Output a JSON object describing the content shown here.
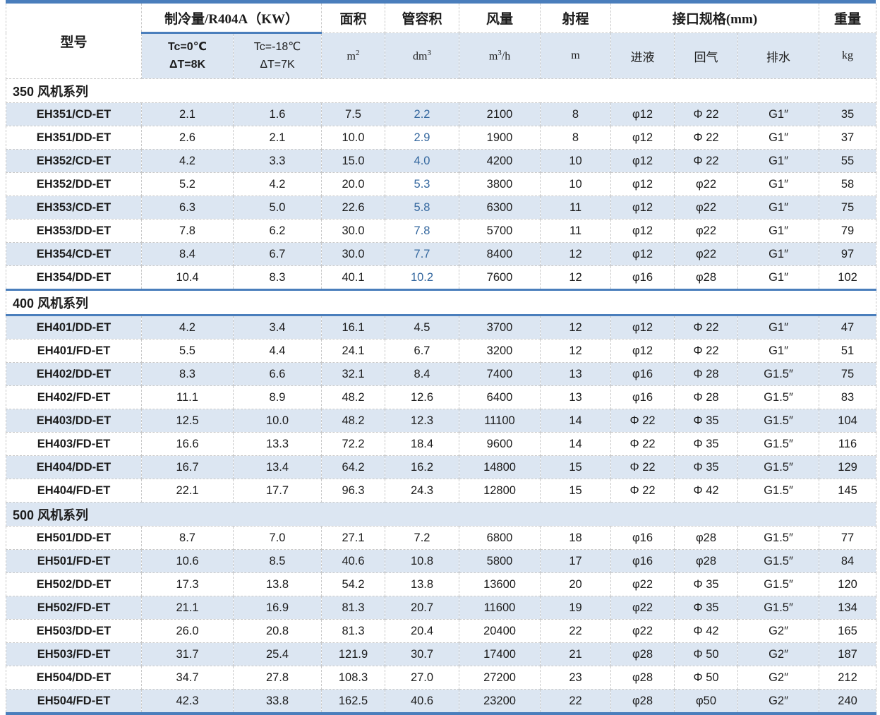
{
  "colors": {
    "accent_line": "#4a7ebc",
    "row_shade": "#dce6f2",
    "volume_text_blue": "#35689f",
    "grid_dash": "#c9c9c9"
  },
  "header": {
    "model_label": "型号",
    "cooling_group_label": "制冷量/R404A（KW）",
    "cooling_cols": [
      {
        "line1": "Tc=0℃",
        "line2": "ΔT=8K"
      },
      {
        "line1": "Tc=-18℃",
        "line2": "ΔT=7K"
      }
    ],
    "area_label": "面积",
    "vol_label": "管容积",
    "flow_label": "风量",
    "throw_label": "射程",
    "conn_group_label": "接口规格(mm)",
    "weight_label": "重量",
    "units": {
      "area": {
        "pre": "m",
        "sup": "2",
        "post": ""
      },
      "vol": {
        "pre": "dm",
        "sup": "3",
        "post": ""
      },
      "flow": {
        "pre": "m",
        "sup": "3",
        "post": "/h"
      },
      "throw": "m",
      "liquid": "进液",
      "gas": "回气",
      "drain": "排水",
      "weight": "kg"
    }
  },
  "sections": [
    {
      "series": "350",
      "title": "350 风机系列",
      "header_shaded": false,
      "divider_top": false,
      "divider_bottom": false,
      "vol_text_blue": true,
      "rows": [
        {
          "model": "EH351/CD-ET",
          "tc0": "2.1",
          "tc18": "1.6",
          "area": "7.5",
          "vol": "2.2",
          "flow": "2100",
          "throw": "8",
          "liquid": "φ12",
          "gas": "Φ 22",
          "drain": "G1″",
          "weight": "35",
          "shaded": true
        },
        {
          "model": "EH351/DD-ET",
          "tc0": "2.6",
          "tc18": "2.1",
          "area": "10.0",
          "vol": "2.9",
          "flow": "1900",
          "throw": "8",
          "liquid": "φ12",
          "gas": "Φ 22",
          "drain": "G1″",
          "weight": "37",
          "shaded": false
        },
        {
          "model": "EH352/CD-ET",
          "tc0": "4.2",
          "tc18": "3.3",
          "area": "15.0",
          "vol": "4.0",
          "flow": "4200",
          "throw": "10",
          "liquid": "φ12",
          "gas": "Φ 22",
          "drain": "G1″",
          "weight": "55",
          "shaded": true
        },
        {
          "model": "EH352/DD-ET",
          "tc0": "5.2",
          "tc18": "4.2",
          "area": "20.0",
          "vol": "5.3",
          "flow": "3800",
          "throw": "10",
          "liquid": "φ12",
          "gas": "φ22",
          "drain": "G1″",
          "weight": "58",
          "shaded": false
        },
        {
          "model": "EH353/CD-ET",
          "tc0": "6.3",
          "tc18": "5.0",
          "area": "22.6",
          "vol": "5.8",
          "flow": "6300",
          "throw": "11",
          "liquid": "φ12",
          "gas": "φ22",
          "drain": "G1″",
          "weight": "75",
          "shaded": true
        },
        {
          "model": "EH353/DD-ET",
          "tc0": "7.8",
          "tc18": "6.2",
          "area": "30.0",
          "vol": "7.8",
          "flow": "5700",
          "throw": "11",
          "liquid": "φ12",
          "gas": "φ22",
          "drain": "G1″",
          "weight": "79",
          "shaded": false
        },
        {
          "model": "EH354/CD-ET",
          "tc0": "8.4",
          "tc18": "6.7",
          "area": "30.0",
          "vol": "7.7",
          "flow": "8400",
          "throw": "12",
          "liquid": "φ12",
          "gas": "φ22",
          "drain": "G1″",
          "weight": "97",
          "shaded": true
        },
        {
          "model": "EH354/DD-ET",
          "tc0": "10.4",
          "tc18": "8.3",
          "area": "40.1",
          "vol": "10.2",
          "flow": "7600",
          "throw": "12",
          "liquid": "φ16",
          "gas": "φ28",
          "drain": "G1″",
          "weight": "102",
          "shaded": false
        }
      ]
    },
    {
      "series": "400",
      "title": "400 风机系列",
      "header_shaded": false,
      "divider_top": true,
      "divider_bottom": true,
      "vol_text_blue": false,
      "rows": [
        {
          "model": "EH401/DD-ET",
          "tc0": "4.2",
          "tc18": "3.4",
          "area": "16.1",
          "vol": "4.5",
          "flow": "3700",
          "throw": "12",
          "liquid": "φ12",
          "gas": "Φ 22",
          "drain": "G1″",
          "weight": "47",
          "shaded": true
        },
        {
          "model": "EH401/FD-ET",
          "tc0": "5.5",
          "tc18": "4.4",
          "area": "24.1",
          "vol": "6.7",
          "flow": "3200",
          "throw": "12",
          "liquid": "φ12",
          "gas": "Φ 22",
          "drain": "G1″",
          "weight": "51",
          "shaded": false
        },
        {
          "model": "EH402/DD-ET",
          "tc0": "8.3",
          "tc18": "6.6",
          "area": "32.1",
          "vol": "8.4",
          "flow": "7400",
          "throw": "13",
          "liquid": "φ16",
          "gas": "Φ 28",
          "drain": "G1.5″",
          "weight": "75",
          "shaded": true
        },
        {
          "model": "EH402/FD-ET",
          "tc0": "11.1",
          "tc18": "8.9",
          "area": "48.2",
          "vol": "12.6",
          "flow": "6400",
          "throw": "13",
          "liquid": "φ16",
          "gas": "Φ 28",
          "drain": "G1.5″",
          "weight": "83",
          "shaded": false
        },
        {
          "model": "EH403/DD-ET",
          "tc0": "12.5",
          "tc18": "10.0",
          "area": "48.2",
          "vol": "12.3",
          "flow": "11100",
          "throw": "14",
          "liquid": "Φ 22",
          "gas": "Φ 35",
          "drain": "G1.5″",
          "weight": "104",
          "shaded": true
        },
        {
          "model": "EH403/FD-ET",
          "tc0": "16.6",
          "tc18": "13.3",
          "area": "72.2",
          "vol": "18.4",
          "flow": "9600",
          "throw": "14",
          "liquid": "Φ 22",
          "gas": "Φ 35",
          "drain": "G1.5″",
          "weight": "116",
          "shaded": false
        },
        {
          "model": "EH404/DD-ET",
          "tc0": "16.7",
          "tc18": "13.4",
          "area": "64.2",
          "vol": "16.2",
          "flow": "14800",
          "throw": "15",
          "liquid": "Φ 22",
          "gas": "Φ 35",
          "drain": "G1.5″",
          "weight": "129",
          "shaded": true
        },
        {
          "model": "EH404/FD-ET",
          "tc0": "22.1",
          "tc18": "17.7",
          "area": "96.3",
          "vol": "24.3",
          "flow": "12800",
          "throw": "15",
          "liquid": "Φ 22",
          "gas": "Φ 42",
          "drain": "G1.5″",
          "weight": "145",
          "shaded": false
        }
      ]
    },
    {
      "series": "500",
      "title": "500 风机系列",
      "header_shaded": true,
      "divider_top": false,
      "divider_bottom": false,
      "vol_text_blue": false,
      "rows": [
        {
          "model": "EH501/DD-ET",
          "tc0": "8.7",
          "tc18": "7.0",
          "area": "27.1",
          "vol": "7.2",
          "flow": "6800",
          "throw": "18",
          "liquid": "φ16",
          "gas": "φ28",
          "drain": "G1.5″",
          "weight": "77",
          "shaded": false
        },
        {
          "model": "EH501/FD-ET",
          "tc0": "10.6",
          "tc18": "8.5",
          "area": "40.6",
          "vol": "10.8",
          "flow": "5800",
          "throw": "17",
          "liquid": "φ16",
          "gas": "φ28",
          "drain": "G1.5″",
          "weight": "84",
          "shaded": true
        },
        {
          "model": "EH502/DD-ET",
          "tc0": "17.3",
          "tc18": "13.8",
          "area": "54.2",
          "vol": "13.8",
          "flow": "13600",
          "throw": "20",
          "liquid": "φ22",
          "gas": "Φ 35",
          "drain": "G1.5″",
          "weight": "120",
          "shaded": false
        },
        {
          "model": "EH502/FD-ET",
          "tc0": "21.1",
          "tc18": "16.9",
          "area": "81.3",
          "vol": "20.7",
          "flow": "11600",
          "throw": "19",
          "liquid": "φ22",
          "gas": "Φ 35",
          "drain": "G1.5″",
          "weight": "134",
          "shaded": true
        },
        {
          "model": "EH503/DD-ET",
          "tc0": "26.0",
          "tc18": "20.8",
          "area": "81.3",
          "vol": "20.4",
          "flow": "20400",
          "throw": "22",
          "liquid": "φ22",
          "gas": "Φ 42",
          "drain": "G2″",
          "weight": "165",
          "shaded": false
        },
        {
          "model": "EH503/FD-ET",
          "tc0": "31.7",
          "tc18": "25.4",
          "area": "121.9",
          "vol": "30.7",
          "flow": "17400",
          "throw": "21",
          "liquid": "φ28",
          "gas": "Φ 50",
          "drain": "G2″",
          "weight": "187",
          "shaded": true
        },
        {
          "model": "EH504/DD-ET",
          "tc0": "34.7",
          "tc18": "27.8",
          "area": "108.3",
          "vol": "27.0",
          "flow": "27200",
          "throw": "23",
          "liquid": "φ28",
          "gas": "Φ 50",
          "drain": "G2″",
          "weight": "212",
          "shaded": false
        },
        {
          "model": "EH504/FD-ET",
          "tc0": "42.3",
          "tc18": "33.8",
          "area": "162.5",
          "vol": "40.6",
          "flow": "23200",
          "throw": "22",
          "liquid": "φ28",
          "gas": "φ50",
          "drain": "G2″",
          "weight": "240",
          "shaded": true
        }
      ]
    }
  ]
}
